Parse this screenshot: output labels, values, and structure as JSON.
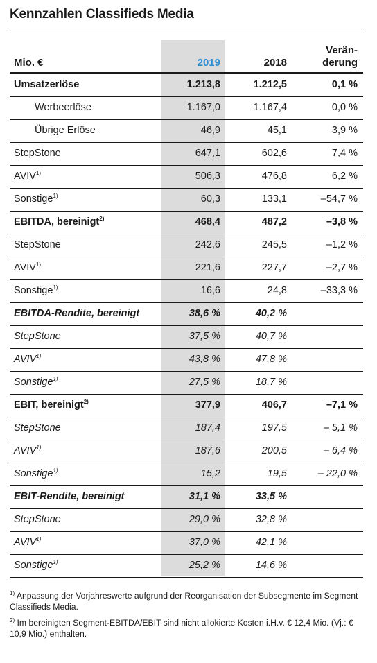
{
  "title": "Kennzahlen Classifieds Media",
  "header": {
    "unit": "Mio. €",
    "year_2019": "2019",
    "year_2018": "2018",
    "change_line1": "Verän-",
    "change_line2": "derung",
    "highlight_color": "#2e8fd0"
  },
  "rows": [
    {
      "label": "Umsatzerlöse",
      "sup": "",
      "v2019": "1.213,8",
      "v2018": "1.212,5",
      "change": "0,1 %",
      "style": "bold",
      "indent": false
    },
    {
      "label": "Werbeerlöse",
      "sup": "",
      "v2019": "1.167,0",
      "v2018": "1.167,4",
      "change": "0,0 %",
      "style": "normal",
      "indent": true
    },
    {
      "label": "Übrige Erlöse",
      "sup": "",
      "v2019": "46,9",
      "v2018": "45,1",
      "change": "3,9 %",
      "style": "normal",
      "indent": true
    },
    {
      "label": "StepStone",
      "sup": "",
      "v2019": "647,1",
      "v2018": "602,6",
      "change": "7,4 %",
      "style": "normal",
      "indent": false
    },
    {
      "label": "AVIV",
      "sup": "1)",
      "v2019": "506,3",
      "v2018": "476,8",
      "change": "6,2 %",
      "style": "normal",
      "indent": false
    },
    {
      "label": "Sonstige",
      "sup": "1)",
      "v2019": "60,3",
      "v2018": "133,1",
      "change": "–54,7 %",
      "style": "normal",
      "indent": false
    },
    {
      "label": "EBITDA, bereinigt",
      "sup": "2)",
      "v2019": "468,4",
      "v2018": "487,2",
      "change": "–3,8 %",
      "style": "bold",
      "indent": false
    },
    {
      "label": "StepStone",
      "sup": "",
      "v2019": "242,6",
      "v2018": "245,5",
      "change": "–1,2 %",
      "style": "normal",
      "indent": false
    },
    {
      "label": "AVIV",
      "sup": "1)",
      "v2019": "221,6",
      "v2018": "227,7",
      "change": "–2,7 %",
      "style": "normal",
      "indent": false
    },
    {
      "label": "Sonstige",
      "sup": "1)",
      "v2019": "16,6",
      "v2018": "24,8",
      "change": "–33,3 %",
      "style": "normal",
      "indent": false
    },
    {
      "label": "EBITDA-Rendite, bereinigt",
      "sup": "",
      "v2019": "38,6 %",
      "v2018": "40,2 %",
      "change": "",
      "style": "bold-italic",
      "indent": false
    },
    {
      "label": "StepStone",
      "sup": "",
      "v2019": "37,5 %",
      "v2018": "40,7 %",
      "change": "",
      "style": "italic",
      "indent": false
    },
    {
      "label": "AVIV",
      "sup": "1)",
      "v2019": "43,8 %",
      "v2018": "47,8 %",
      "change": "",
      "style": "italic",
      "indent": false
    },
    {
      "label": "Sonstige",
      "sup": "1)",
      "v2019": "27,5 %",
      "v2018": "18,7 %",
      "change": "",
      "style": "italic",
      "indent": false
    },
    {
      "label": "EBIT, bereinigt",
      "sup": "2)",
      "v2019": "377,9",
      "v2018": "406,7",
      "change": "–7,1 %",
      "style": "bold",
      "indent": false
    },
    {
      "label": "StepStone",
      "sup": "",
      "v2019": "187,4",
      "v2018": "197,5",
      "change": "– 5,1 %",
      "style": "italic",
      "indent": false
    },
    {
      "label": "AVIV",
      "sup": "1)",
      "v2019": "187,6",
      "v2018": "200,5",
      "change": "– 6,4 %",
      "style": "italic",
      "indent": false
    },
    {
      "label": "Sonstige",
      "sup": "1)",
      "v2019": "15,2",
      "v2018": "19,5",
      "change": "– 22,0 %",
      "style": "italic",
      "indent": false
    },
    {
      "label": "EBIT-Rendite, bereinigt",
      "sup": "",
      "v2019": "31,1 %",
      "v2018": "33,5 %",
      "change": "",
      "style": "bold-italic",
      "indent": false
    },
    {
      "label": "StepStone",
      "sup": "",
      "v2019": "29,0 %",
      "v2018": "32,8 %",
      "change": "",
      "style": "italic",
      "indent": false
    },
    {
      "label": "AVIV",
      "sup": "1)",
      "v2019": "37,0 %",
      "v2018": "42,1 %",
      "change": "",
      "style": "italic",
      "indent": false
    },
    {
      "label": "Sonstige",
      "sup": "1)",
      "v2019": "25,2 %",
      "v2018": "14,6 %",
      "change": "",
      "style": "italic",
      "indent": false
    }
  ],
  "footnotes": [
    {
      "mark": "1)",
      "text": "Anpassung der Vorjahreswerte aufgrund der Reorganisation der Subsegmente im Segment Classifieds Media."
    },
    {
      "mark": "2)",
      "text": "Im bereinigten Segment-EBITDA/EBIT sind nicht allokierte Kosten i.H.v. € 12,4 Mio. (Vj.: € 10,9 Mio.) enthalten."
    }
  ]
}
